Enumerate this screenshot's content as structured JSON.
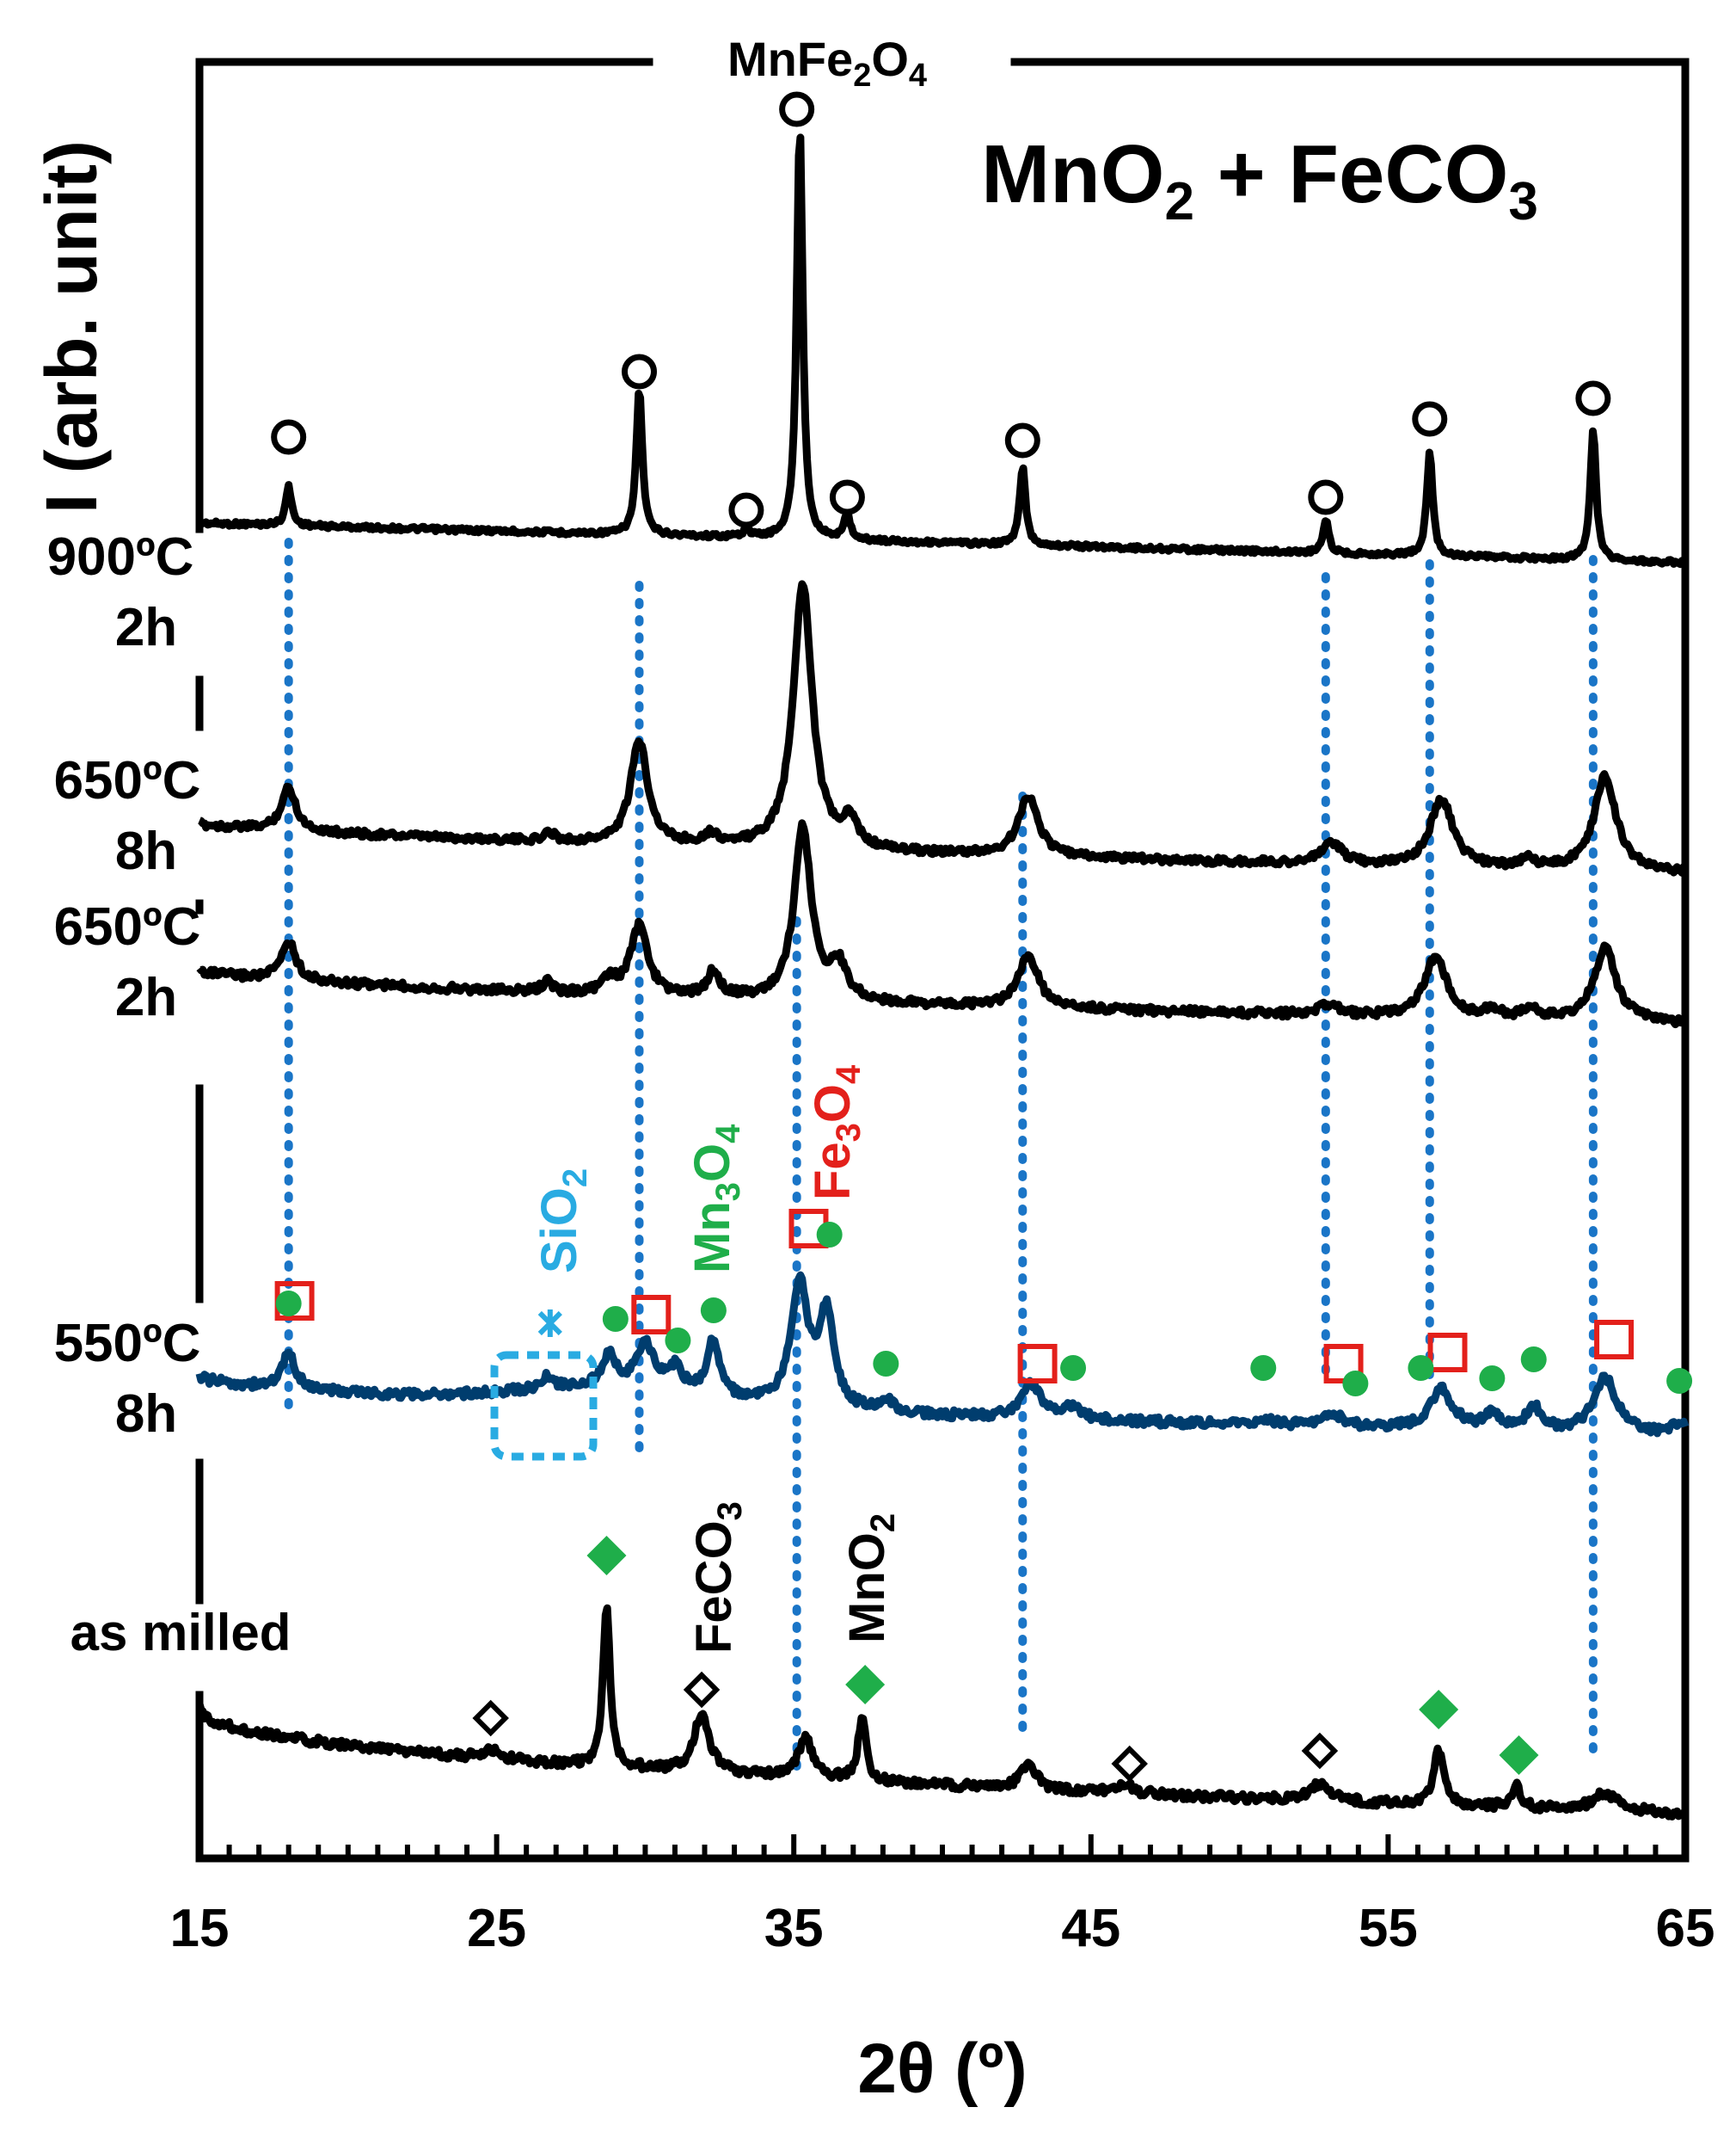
{
  "chart_data": {
    "type": "line",
    "title": "MnO2 + FeCO3",
    "xlabel": "2θ (º)",
    "ylabel": "I (arb. unit)",
    "xlim": [
      15,
      65
    ],
    "xticks": [
      "15",
      "25",
      "35",
      "45",
      "55",
      "65"
    ],
    "yticks": false,
    "grid": false,
    "legend": "none",
    "series": [
      {
        "name": "900ºC 2h",
        "color": "#000000"
      },
      {
        "name": "650ºC 8h",
        "color": "#000000"
      },
      {
        "name": "650ºC 2h",
        "color": "#000000"
      },
      {
        "name": "550ºC 8h",
        "color": "#003d6e"
      },
      {
        "name": "as milled",
        "color": "#000000"
      }
    ],
    "phase_labels": {
      "mnfe2o4": "MnFe2O4",
      "sio2": "SiO2",
      "mn3o4": "Mn3O4",
      "fe3o4": "Fe3O4",
      "feco3": "FeCO3",
      "mno2": "MnO2"
    },
    "reference_lines_2theta": [
      18.0,
      29.8,
      35.1,
      42.7,
      52.9,
      56.4,
      61.9
    ],
    "reference_line_color": "#1a75c7",
    "marker_colors": {
      "mnfe2o4": "#000000",
      "fe3o4": "#e3201b",
      "mn3o4": "#1fae4a",
      "sio2": "#29abe2",
      "feco3": "#000000",
      "mno2": "#1fae4a"
    }
  }
}
